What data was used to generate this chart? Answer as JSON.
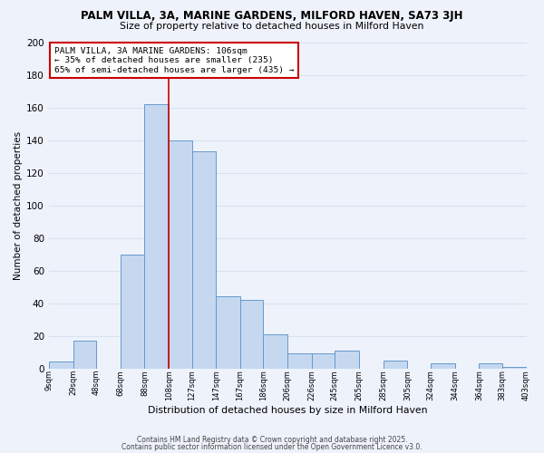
{
  "title1": "PALM VILLA, 3A, MARINE GARDENS, MILFORD HAVEN, SA73 3JH",
  "title2": "Size of property relative to detached houses in Milford Haven",
  "xlabel": "Distribution of detached houses by size in Milford Haven",
  "ylabel": "Number of detached properties",
  "bin_labels": [
    "9sqm",
    "29sqm",
    "48sqm",
    "68sqm",
    "88sqm",
    "108sqm",
    "127sqm",
    "147sqm",
    "167sqm",
    "186sqm",
    "206sqm",
    "226sqm",
    "245sqm",
    "265sqm",
    "285sqm",
    "305sqm",
    "324sqm",
    "344sqm",
    "364sqm",
    "383sqm",
    "403sqm"
  ],
  "bar_heights": [
    4,
    17,
    0,
    70,
    162,
    140,
    133,
    44,
    42,
    21,
    9,
    9,
    11,
    0,
    5,
    0,
    3,
    0,
    3,
    1
  ],
  "bar_color": "#c5d8f0",
  "bar_edge_color": "#6699cc",
  "vline_x": 108,
  "annotation_line1": "PALM VILLA, 3A MARINE GARDENS: 106sqm",
  "annotation_line2": "← 35% of detached houses are smaller (235)",
  "annotation_line3": "65% of semi-detached houses are larger (435) →",
  "vline_color": "#cc0000",
  "ylim": [
    0,
    200
  ],
  "yticks": [
    0,
    20,
    40,
    60,
    80,
    100,
    120,
    140,
    160,
    180,
    200
  ],
  "footer1": "Contains HM Land Registry data © Crown copyright and database right 2025.",
  "footer2": "Contains public sector information licensed under the Open Government Licence v3.0.",
  "bg_color": "#eef2fb",
  "grid_color": "#d8e2f0"
}
